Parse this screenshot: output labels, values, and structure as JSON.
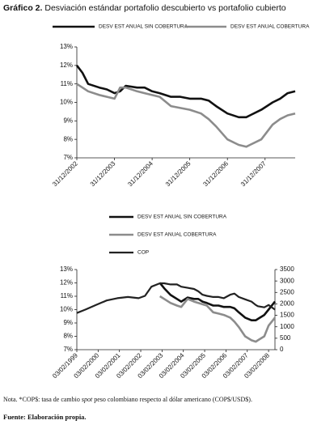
{
  "heading": {
    "label": "Gráfico 2.",
    "text": "Desviación estándar portafolio descubierto vs portafolio cubierto"
  },
  "chart_data": [
    {
      "type": "line",
      "legend": "top",
      "x": [
        2003.0,
        2003.15,
        2003.3,
        2003.6,
        2003.8,
        2004.0,
        2004.15,
        2004.3,
        2004.6,
        2004.8,
        2005.0,
        2005.2,
        2005.5,
        2005.75,
        2006.0,
        2006.3,
        2006.5,
        2006.7,
        2007.0,
        2007.3,
        2007.5,
        2007.6,
        2007.9,
        2008.2,
        2008.4,
        2008.6,
        2008.8
      ],
      "series": [
        {
          "name": "DESV EST ANUAL SIN COBERTURA",
          "color": "#111111",
          "width": 2.6,
          "values": [
            12.0,
            11.6,
            11.0,
            10.8,
            10.7,
            10.5,
            10.6,
            10.9,
            10.8,
            10.8,
            10.6,
            10.5,
            10.3,
            10.3,
            10.2,
            10.2,
            10.1,
            9.8,
            9.4,
            9.2,
            9.2,
            9.3,
            9.6,
            10.0,
            10.2,
            10.5,
            10.6
          ]
        },
        {
          "name": "DESV EST ANUAL COBERTURA",
          "color": "#8c8c8c",
          "width": 2.6,
          "values": [
            11.0,
            10.8,
            10.6,
            10.4,
            10.3,
            10.2,
            10.8,
            10.8,
            10.6,
            10.5,
            10.4,
            10.3,
            9.8,
            9.7,
            9.6,
            9.4,
            9.1,
            8.7,
            8.0,
            7.7,
            7.6,
            7.7,
            8.0,
            8.8,
            9.1,
            9.3,
            9.4
          ]
        }
      ],
      "xlim": [
        2003.0,
        2008.8
      ],
      "xticks": [
        {
          "value": 2003.0,
          "label": "31/12/2002"
        },
        {
          "value": 2004.0,
          "label": "31/12/2003"
        },
        {
          "value": 2005.0,
          "label": "31/12/2004"
        },
        {
          "value": 2006.0,
          "label": "31/12/2005"
        },
        {
          "value": 2007.0,
          "label": "31/12/2006"
        },
        {
          "value": 2008.0,
          "label": "31/12/2007"
        }
      ],
      "ylim": [
        7,
        13
      ],
      "yticks": [
        {
          "value": 7,
          "label": "7%"
        },
        {
          "value": 8,
          "label": "8%"
        },
        {
          "value": 9,
          "label": "9%"
        },
        {
          "value": 10,
          "label": "10%"
        },
        {
          "value": 11,
          "label": "11%"
        },
        {
          "value": 12,
          "label": "12%"
        },
        {
          "value": 13,
          "label": "13%"
        }
      ]
    },
    {
      "type": "line",
      "legend": "top",
      "x": [
        1999.1,
        1999.5,
        2000.0,
        2000.5,
        2001.0,
        2001.5,
        2002.0,
        2002.3,
        2002.6,
        2003.0,
        2003.2,
        2003.5,
        2003.8,
        2004.0,
        2004.3,
        2004.6,
        2004.8,
        2005.0,
        2005.2,
        2005.5,
        2005.75,
        2006.0,
        2006.3,
        2006.5,
        2006.7,
        2007.0,
        2007.3,
        2007.5,
        2007.6,
        2007.9,
        2008.1,
        2008.4
      ],
      "series": [
        {
          "name": "DESV EST ANUAL SIN COBERTURA",
          "color": "#111111",
          "width": 2.6,
          "values": [
            null,
            null,
            null,
            null,
            null,
            null,
            null,
            null,
            null,
            12.0,
            11.6,
            11.1,
            10.8,
            10.6,
            10.9,
            10.8,
            10.8,
            10.6,
            10.5,
            10.3,
            10.3,
            10.2,
            10.2,
            10.1,
            9.8,
            9.4,
            9.2,
            9.2,
            9.3,
            9.6,
            10.0,
            10.6
          ]
        },
        {
          "name": "DESV EST ANUAL COBERTURA",
          "color": "#8c8c8c",
          "width": 2.6,
          "values": [
            null,
            null,
            null,
            null,
            null,
            null,
            null,
            null,
            null,
            11.0,
            10.8,
            10.5,
            10.3,
            10.2,
            10.8,
            10.6,
            10.5,
            10.4,
            10.3,
            9.8,
            9.7,
            9.6,
            9.4,
            9.1,
            8.7,
            8.0,
            7.7,
            7.6,
            7.7,
            8.0,
            8.8,
            9.4
          ]
        },
        {
          "name": "COP",
          "color": "#222222",
          "width": 2.2,
          "axis": "y2",
          "values": [
            1600,
            1750,
            1950,
            2150,
            2250,
            2300,
            2250,
            2350,
            2750,
            2900,
            2900,
            2850,
            2850,
            2750,
            2700,
            2650,
            2550,
            2400,
            2350,
            2300,
            2300,
            2250,
            2400,
            2450,
            2300,
            2200,
            2100,
            1950,
            1900,
            1850,
            1950,
            1750
          ]
        }
      ],
      "xlim": [
        1999.1,
        2008.4
      ],
      "xticks": [
        {
          "value": 1999.1,
          "label": "03/02/1999"
        },
        {
          "value": 2000.1,
          "label": "03/02/2000"
        },
        {
          "value": 2001.1,
          "label": "03/02/2001"
        },
        {
          "value": 2002.1,
          "label": "03/02/2002"
        },
        {
          "value": 2003.1,
          "label": "03/02/2003"
        },
        {
          "value": 2004.1,
          "label": "03/02/2004"
        },
        {
          "value": 2005.1,
          "label": "03/02/2005"
        },
        {
          "value": 2006.1,
          "label": "03/02/2006"
        },
        {
          "value": 2007.1,
          "label": "03/02/2007"
        },
        {
          "value": 2008.1,
          "label": "03/02/2008"
        }
      ],
      "ylim": [
        7,
        13
      ],
      "yticks": [
        {
          "value": 7,
          "label": "7%"
        },
        {
          "value": 8,
          "label": "8%"
        },
        {
          "value": 9,
          "label": "9%"
        },
        {
          "value": 10,
          "label": "10%"
        },
        {
          "value": 11,
          "label": "11%"
        },
        {
          "value": 12,
          "label": "12%"
        },
        {
          "value": 13,
          "label": "13%"
        }
      ],
      "y2lim": [
        0,
        3500
      ],
      "y2ticks": [
        0,
        500,
        1000,
        1500,
        2000,
        2500,
        3000,
        3500
      ]
    }
  ],
  "note": [
    "Nota. *COP$: tasa de cambio ",
    "spot",
    " peso colombiano respecto al dólar americano (COP$/USD$)."
  ],
  "source": "Fuente: Elaboración propia."
}
